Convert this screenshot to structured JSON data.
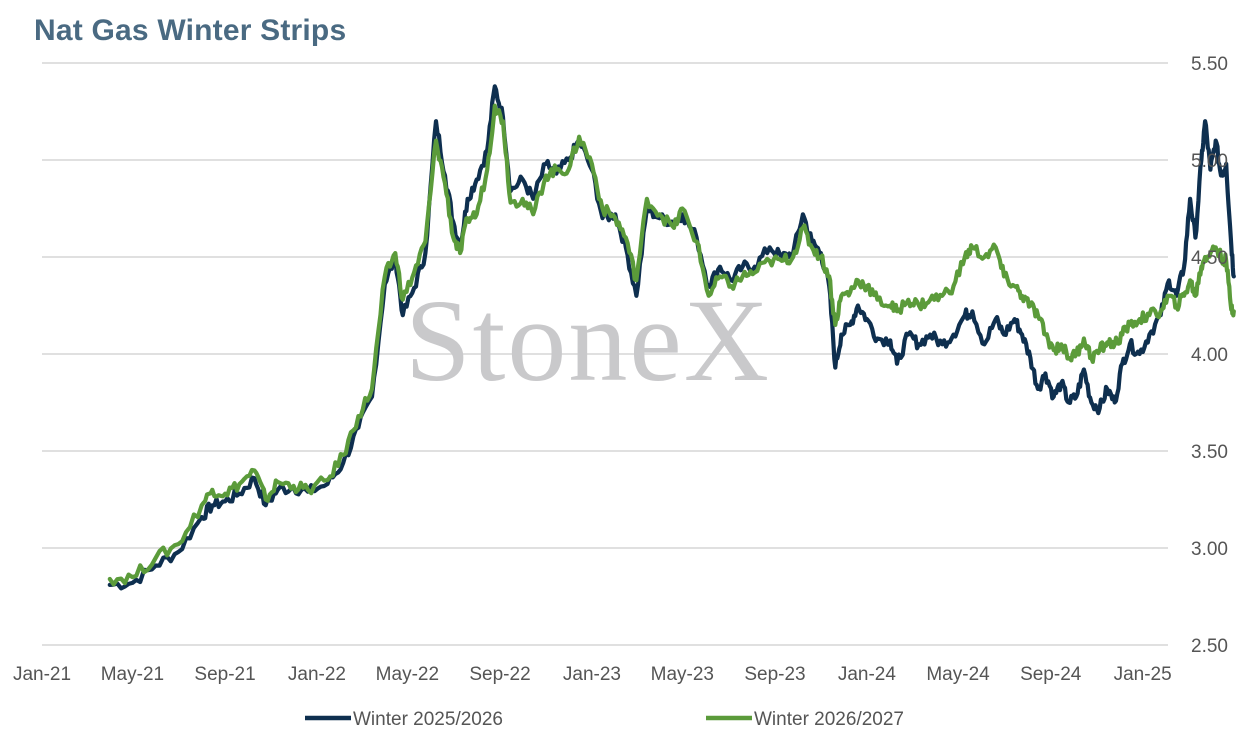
{
  "chart_data": {
    "type": "line",
    "title": "Nat Gas Winter Strips",
    "watermark": "StoneX",
    "xlabel": "",
    "ylabel": "",
    "ylim": [
      2.5,
      5.5
    ],
    "yticks": [
      "2.50",
      "3.00",
      "3.50",
      "4.00",
      "4.50",
      "5.00",
      "5.50"
    ],
    "xticks": [
      "Jan-21",
      "May-21",
      "Sep-21",
      "Jan-22",
      "May-22",
      "Sep-22",
      "Jan-23",
      "May-23",
      "Sep-23",
      "Jan-24",
      "May-24",
      "Sep-24",
      "Jan-25"
    ],
    "grid": "horizontal",
    "legend_position": "bottom",
    "colors": {
      "Winter 2025/2026": "#0e2f4f",
      "Winter 2026/2027": "#5b9b3a"
    },
    "series": [
      {
        "name": "Winter 2025/2026",
        "points": [
          [
            "2021-04-01",
            2.81
          ],
          [
            "2021-05-01",
            2.82
          ],
          [
            "2021-06-01",
            2.91
          ],
          [
            "2021-07-01",
            2.98
          ],
          [
            "2021-08-01",
            3.16
          ],
          [
            "2021-08-15",
            3.22
          ],
          [
            "2021-09-01",
            3.24
          ],
          [
            "2021-09-20",
            3.28
          ],
          [
            "2021-10-10",
            3.36
          ],
          [
            "2021-10-25",
            3.22
          ],
          [
            "2021-11-10",
            3.3
          ],
          [
            "2021-12-01",
            3.31
          ],
          [
            "2021-12-20",
            3.29
          ],
          [
            "2022-01-15",
            3.33
          ],
          [
            "2022-02-05",
            3.44
          ],
          [
            "2022-02-25",
            3.62
          ],
          [
            "2022-03-15",
            3.78
          ],
          [
            "2022-04-01",
            4.36
          ],
          [
            "2022-04-15",
            4.5
          ],
          [
            "2022-04-25",
            4.2
          ],
          [
            "2022-05-10",
            4.34
          ],
          [
            "2022-05-25",
            4.52
          ],
          [
            "2022-06-08",
            5.2
          ],
          [
            "2022-06-20",
            4.92
          ],
          [
            "2022-07-01",
            4.68
          ],
          [
            "2022-07-10",
            4.55
          ],
          [
            "2022-07-20",
            4.8
          ],
          [
            "2022-08-01",
            4.9
          ],
          [
            "2022-08-15",
            5.05
          ],
          [
            "2022-08-25",
            5.38
          ],
          [
            "2022-09-05",
            5.22
          ],
          [
            "2022-09-15",
            4.84
          ],
          [
            "2022-10-01",
            4.9
          ],
          [
            "2022-10-15",
            4.8
          ],
          [
            "2022-11-01",
            4.98
          ],
          [
            "2022-11-15",
            4.93
          ],
          [
            "2022-12-01",
            5.0
          ],
          [
            "2022-12-15",
            5.1
          ],
          [
            "2023-01-01",
            4.95
          ],
          [
            "2023-01-15",
            4.7
          ],
          [
            "2023-02-01",
            4.72
          ],
          [
            "2023-02-15",
            4.55
          ],
          [
            "2023-03-01",
            4.3
          ],
          [
            "2023-03-15",
            4.75
          ],
          [
            "2023-04-01",
            4.7
          ],
          [
            "2023-04-20",
            4.68
          ],
          [
            "2023-05-01",
            4.72
          ],
          [
            "2023-05-20",
            4.6
          ],
          [
            "2023-06-05",
            4.35
          ],
          [
            "2023-06-20",
            4.45
          ],
          [
            "2023-07-05",
            4.38
          ],
          [
            "2023-07-20",
            4.45
          ],
          [
            "2023-08-05",
            4.45
          ],
          [
            "2023-08-25",
            4.55
          ],
          [
            "2023-09-10",
            4.5
          ],
          [
            "2023-09-25",
            4.52
          ],
          [
            "2023-10-08",
            4.72
          ],
          [
            "2023-10-20",
            4.58
          ],
          [
            "2023-11-01",
            4.52
          ],
          [
            "2023-11-12",
            4.35
          ],
          [
            "2023-11-20",
            3.93
          ],
          [
            "2023-11-28",
            4.1
          ],
          [
            "2023-12-10",
            4.15
          ],
          [
            "2023-12-20",
            4.25
          ],
          [
            "2024-01-01",
            4.18
          ],
          [
            "2024-01-15",
            4.08
          ],
          [
            "2024-02-01",
            4.07
          ],
          [
            "2024-02-10",
            3.95
          ],
          [
            "2024-02-25",
            4.1
          ],
          [
            "2024-03-10",
            4.05
          ],
          [
            "2024-03-25",
            4.1
          ],
          [
            "2024-04-10",
            4.05
          ],
          [
            "2024-04-25",
            4.1
          ],
          [
            "2024-05-10",
            4.2
          ],
          [
            "2024-05-20",
            4.22
          ],
          [
            "2024-06-05",
            4.05
          ],
          [
            "2024-06-20",
            4.18
          ],
          [
            "2024-07-01",
            4.1
          ],
          [
            "2024-07-15",
            4.18
          ],
          [
            "2024-07-25",
            4.1
          ],
          [
            "2024-08-05",
            3.98
          ],
          [
            "2024-08-15",
            3.82
          ],
          [
            "2024-08-25",
            3.9
          ],
          [
            "2024-09-05",
            3.78
          ],
          [
            "2024-09-15",
            3.85
          ],
          [
            "2024-09-25",
            3.75
          ],
          [
            "2024-10-05",
            3.78
          ],
          [
            "2024-10-15",
            3.92
          ],
          [
            "2024-10-25",
            3.75
          ],
          [
            "2024-11-05",
            3.72
          ],
          [
            "2024-11-15",
            3.82
          ],
          [
            "2024-11-25",
            3.75
          ],
          [
            "2024-12-05",
            3.95
          ],
          [
            "2024-12-15",
            4.05
          ],
          [
            "2024-12-28",
            4.0
          ],
          [
            "2025-01-10",
            4.1
          ],
          [
            "2025-01-25",
            4.2
          ],
          [
            "2025-02-05",
            4.38
          ],
          [
            "2025-02-15",
            4.3
          ],
          [
            "2025-02-25",
            4.45
          ],
          [
            "2025-03-05",
            4.8
          ],
          [
            "2025-03-12",
            4.6
          ],
          [
            "2025-03-20",
            5.0
          ],
          [
            "2025-03-25",
            5.2
          ],
          [
            "2025-04-01",
            4.95
          ],
          [
            "2025-04-08",
            5.1
          ],
          [
            "2025-04-15",
            4.92
          ],
          [
            "2025-04-22",
            4.98
          ],
          [
            "2025-04-28",
            4.6
          ],
          [
            "2025-05-02",
            4.4
          ]
        ]
      },
      {
        "name": "Winter 2026/2027",
        "points": [
          [
            "2021-04-01",
            2.84
          ],
          [
            "2021-05-01",
            2.85
          ],
          [
            "2021-06-01",
            2.95
          ],
          [
            "2021-07-01",
            3.02
          ],
          [
            "2021-08-01",
            3.22
          ],
          [
            "2021-08-15",
            3.3
          ],
          [
            "2021-09-01",
            3.28
          ],
          [
            "2021-09-20",
            3.33
          ],
          [
            "2021-10-10",
            3.4
          ],
          [
            "2021-10-25",
            3.25
          ],
          [
            "2021-11-10",
            3.34
          ],
          [
            "2021-12-01",
            3.32
          ],
          [
            "2021-12-20",
            3.3
          ],
          [
            "2022-01-15",
            3.35
          ],
          [
            "2022-02-05",
            3.48
          ],
          [
            "2022-02-25",
            3.68
          ],
          [
            "2022-03-15",
            3.82
          ],
          [
            "2022-04-01",
            4.4
          ],
          [
            "2022-04-15",
            4.52
          ],
          [
            "2022-04-25",
            4.28
          ],
          [
            "2022-05-10",
            4.42
          ],
          [
            "2022-05-25",
            4.58
          ],
          [
            "2022-06-08",
            5.1
          ],
          [
            "2022-06-20",
            4.88
          ],
          [
            "2022-07-01",
            4.6
          ],
          [
            "2022-07-10",
            4.52
          ],
          [
            "2022-07-20",
            4.7
          ],
          [
            "2022-08-01",
            4.72
          ],
          [
            "2022-08-15",
            4.95
          ],
          [
            "2022-08-25",
            5.28
          ],
          [
            "2022-09-05",
            5.2
          ],
          [
            "2022-09-15",
            4.78
          ],
          [
            "2022-10-01",
            4.8
          ],
          [
            "2022-10-15",
            4.72
          ],
          [
            "2022-11-01",
            4.92
          ],
          [
            "2022-11-15",
            4.95
          ],
          [
            "2022-12-01",
            4.95
          ],
          [
            "2022-12-15",
            5.12
          ],
          [
            "2023-01-01",
            4.98
          ],
          [
            "2023-01-15",
            4.75
          ],
          [
            "2023-02-01",
            4.7
          ],
          [
            "2023-02-15",
            4.6
          ],
          [
            "2023-03-01",
            4.38
          ],
          [
            "2023-03-15",
            4.8
          ],
          [
            "2023-04-01",
            4.72
          ],
          [
            "2023-04-20",
            4.65
          ],
          [
            "2023-05-01",
            4.75
          ],
          [
            "2023-05-20",
            4.58
          ],
          [
            "2023-06-05",
            4.3
          ],
          [
            "2023-06-20",
            4.4
          ],
          [
            "2023-07-05",
            4.35
          ],
          [
            "2023-07-20",
            4.4
          ],
          [
            "2023-08-05",
            4.42
          ],
          [
            "2023-08-25",
            4.48
          ],
          [
            "2023-09-10",
            4.48
          ],
          [
            "2023-09-25",
            4.5
          ],
          [
            "2023-10-08",
            4.65
          ],
          [
            "2023-10-20",
            4.55
          ],
          [
            "2023-11-01",
            4.5
          ],
          [
            "2023-11-12",
            4.4
          ],
          [
            "2023-11-20",
            4.15
          ],
          [
            "2023-11-28",
            4.3
          ],
          [
            "2023-12-10",
            4.32
          ],
          [
            "2023-12-20",
            4.38
          ],
          [
            "2024-01-01",
            4.35
          ],
          [
            "2024-01-15",
            4.28
          ],
          [
            "2024-02-01",
            4.25
          ],
          [
            "2024-02-10",
            4.22
          ],
          [
            "2024-02-25",
            4.28
          ],
          [
            "2024-03-10",
            4.25
          ],
          [
            "2024-03-25",
            4.28
          ],
          [
            "2024-04-10",
            4.3
          ],
          [
            "2024-04-25",
            4.35
          ],
          [
            "2024-05-10",
            4.5
          ],
          [
            "2024-05-20",
            4.55
          ],
          [
            "2024-06-05",
            4.5
          ],
          [
            "2024-06-20",
            4.55
          ],
          [
            "2024-07-01",
            4.4
          ],
          [
            "2024-07-15",
            4.35
          ],
          [
            "2024-07-25",
            4.3
          ],
          [
            "2024-08-05",
            4.25
          ],
          [
            "2024-08-15",
            4.2
          ],
          [
            "2024-08-25",
            4.1
          ],
          [
            "2024-09-05",
            4.02
          ],
          [
            "2024-09-15",
            4.05
          ],
          [
            "2024-09-25",
            3.98
          ],
          [
            "2024-10-05",
            4.0
          ],
          [
            "2024-10-15",
            4.08
          ],
          [
            "2024-10-25",
            3.98
          ],
          [
            "2024-11-05",
            4.02
          ],
          [
            "2024-11-15",
            4.06
          ],
          [
            "2024-11-25",
            4.05
          ],
          [
            "2024-12-05",
            4.1
          ],
          [
            "2024-12-15",
            4.15
          ],
          [
            "2024-12-28",
            4.18
          ],
          [
            "2025-01-10",
            4.2
          ],
          [
            "2025-01-25",
            4.22
          ],
          [
            "2025-02-05",
            4.3
          ],
          [
            "2025-02-15",
            4.25
          ],
          [
            "2025-02-25",
            4.3
          ],
          [
            "2025-03-05",
            4.38
          ],
          [
            "2025-03-12",
            4.3
          ],
          [
            "2025-03-20",
            4.45
          ],
          [
            "2025-03-25",
            4.5
          ],
          [
            "2025-04-01",
            4.52
          ],
          [
            "2025-04-08",
            4.55
          ],
          [
            "2025-04-15",
            4.5
          ],
          [
            "2025-04-22",
            4.48
          ],
          [
            "2025-04-28",
            4.25
          ],
          [
            "2025-05-02",
            4.22
          ]
        ]
      }
    ]
  }
}
